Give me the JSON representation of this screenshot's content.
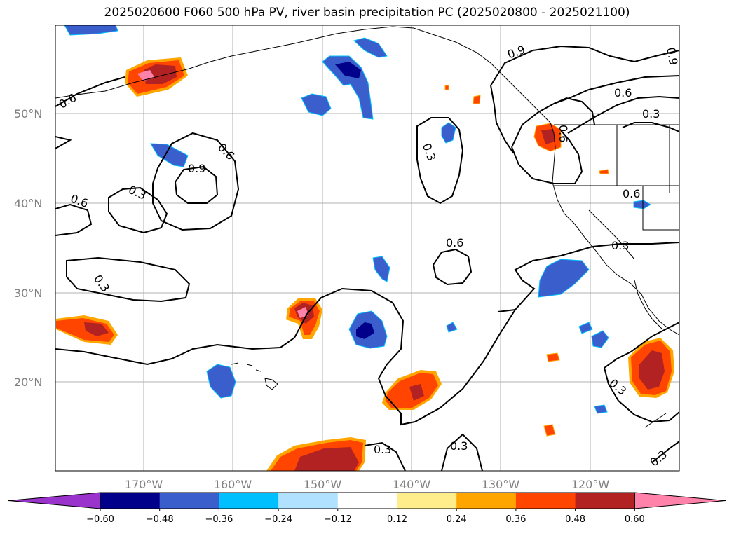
{
  "title": "2025020600 F060 500 hPa PV, river basin precipitation PC (2025020800 - 2025021100)",
  "lat_labels": [
    "50°N",
    "40°N",
    "30°N",
    "20°N"
  ],
  "lon_labels": [
    "170°W",
    "160°W",
    "150°W",
    "140°W",
    "130°W",
    "120°W"
  ],
  "colorbar": {
    "ticks": [
      "−0.60",
      "−0.48",
      "−0.36",
      "−0.24",
      "−0.12",
      "0.12",
      "0.24",
      "0.36",
      "0.48",
      "0.60"
    ],
    "colors": [
      "#9933cc",
      "#00008b",
      "#3a5fcd",
      "#00bfff",
      "#b0e2ff",
      "#ffffff",
      "#ffec8b",
      "#ffa500",
      "#ff4500",
      "#b22222",
      "#ff82ab"
    ]
  },
  "contour_labels": [
    "0.6",
    "0.9",
    "0.3"
  ],
  "palette": {
    "grid": "#b0b0b0",
    "coast": "#000000"
  }
}
